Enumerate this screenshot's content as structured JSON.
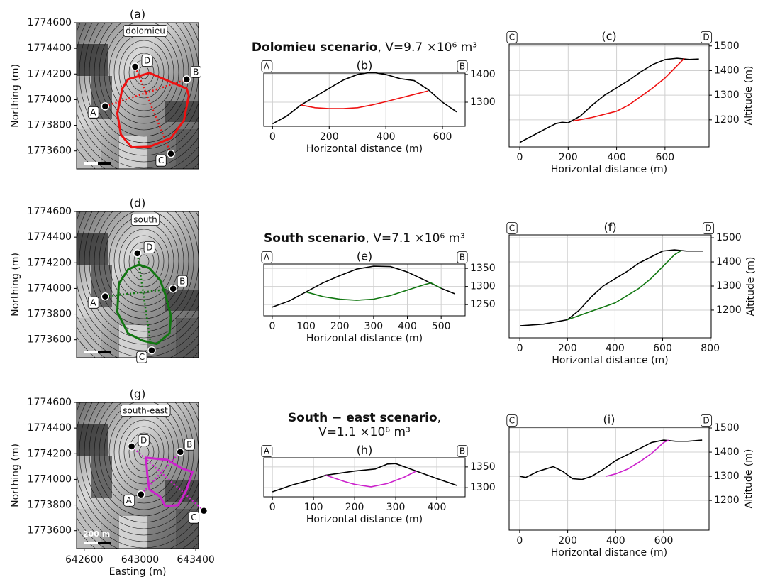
{
  "chart_data": [
    {
      "type": "map",
      "title": "(a)",
      "label": "dolomieu",
      "color": "#ee1111",
      "xlim": [
        642545,
        643420
      ],
      "ylim": [
        1773460,
        1774600
      ],
      "yticks": [
        1773600,
        1773800,
        1774000,
        1774200,
        1774400,
        1774600
      ],
      "ylabel": "Northing (m)",
      "outline": {
        "e": [
          642914,
          643068,
          643335,
          643350,
          643315,
          643222,
          643068,
          642940,
          642863,
          642837,
          642873
        ],
        "n": [
          1774158,
          1774208,
          1774086,
          1774031,
          1773838,
          1773700,
          1773633,
          1773628,
          1773727,
          1773893,
          1774086
        ]
      },
      "points": [
        {
          "label": "A",
          "e": 642750,
          "n": 1773948
        },
        {
          "label": "B",
          "e": 643335,
          "n": 1774158
        },
        {
          "label": "C",
          "e": 643222,
          "n": 1773578
        },
        {
          "label": "D",
          "e": 642965,
          "n": 1774257
        }
      ]
    },
    {
      "type": "line",
      "title": "(b)",
      "heading": {
        "name": "Dolomieu scenario",
        "detail": ", V=9.7 ×10⁶ m³"
      },
      "ends": [
        "A",
        "B"
      ],
      "xlabel": "Horizontal distance (m)",
      "xlim": [
        -31,
        680
      ],
      "ylim": [
        1213,
        1405
      ],
      "xticks": [
        0,
        200,
        400,
        600
      ],
      "yticks": [
        1300,
        1400
      ],
      "grid": true,
      "series": [
        {
          "color": "#000000",
          "x": [
            0,
            50,
            100,
            150,
            200,
            250,
            300,
            350,
            400,
            450,
            500,
            550,
            600,
            650
          ],
          "values": [
            1222,
            1250,
            1290,
            1320,
            1350,
            1380,
            1400,
            1408,
            1400,
            1385,
            1378,
            1345,
            1300,
            1265
          ]
        },
        {
          "color": "#ee1111",
          "x": [
            100,
            150,
            200,
            250,
            300,
            350,
            400,
            450,
            500,
            550
          ],
          "values": [
            1290,
            1280,
            1277,
            1277,
            1280,
            1290,
            1302,
            1315,
            1328,
            1341
          ]
        }
      ]
    },
    {
      "type": "line",
      "title": "(c)",
      "ends": [
        "C",
        "D"
      ],
      "xlabel": "Horizontal distance (m)",
      "ylabel": "Altitude (m)",
      "xlim": [
        -44,
        782
      ],
      "ylim": [
        1090,
        1508
      ],
      "xticks": [
        0,
        200,
        400,
        600
      ],
      "yticks": [
        1200,
        1300,
        1400,
        1500
      ],
      "grid": true,
      "series": [
        {
          "color": "#000000",
          "x": [
            0,
            100,
            150,
            175,
            200,
            250,
            300,
            350,
            400,
            450,
            500,
            550,
            600,
            650,
            700,
            740
          ],
          "values": [
            1108,
            1160,
            1185,
            1190,
            1188,
            1215,
            1260,
            1300,
            1330,
            1360,
            1395,
            1425,
            1445,
            1450,
            1445,
            1447
          ]
        },
        {
          "color": "#ee1111",
          "x": [
            220,
            300,
            400,
            450,
            500,
            550,
            600,
            650,
            680
          ],
          "values": [
            1195,
            1210,
            1235,
            1260,
            1295,
            1330,
            1370,
            1420,
            1450
          ]
        }
      ]
    },
    {
      "type": "map",
      "title": "(d)",
      "label": "south",
      "color": "#117711",
      "xlim": [
        642545,
        643420
      ],
      "ylim": [
        1773460,
        1774600
      ],
      "yticks": [
        1773600,
        1773800,
        1774000,
        1774200,
        1774400,
        1774600
      ],
      "ylabel": "Northing (m)",
      "outline": {
        "e": [
          642991,
          643068,
          643145,
          643181,
          643222,
          643212,
          643120,
          643017,
          642914,
          642837,
          642848,
          642914
        ],
        "n": [
          1774186,
          1774158,
          1774064,
          1773954,
          1773788,
          1773650,
          1773567,
          1773594,
          1773650,
          1773815,
          1774036,
          1774147
        ]
      },
      "points": [
        {
          "label": "A",
          "e": 642750,
          "n": 1773937
        },
        {
          "label": "B",
          "e": 643238,
          "n": 1773998
        },
        {
          "label": "C",
          "e": 643084,
          "n": 1773517
        },
        {
          "label": "D",
          "e": 642981,
          "n": 1774274
        }
      ]
    },
    {
      "type": "line",
      "title": "(e)",
      "heading": {
        "name": "South scenario",
        "detail": ", V=7.1 ×10⁶ m³"
      },
      "ends": [
        "A",
        "B"
      ],
      "xlabel": "Horizontal distance (m)",
      "xlim": [
        -25,
        571
      ],
      "ylim": [
        1219,
        1362
      ],
      "xticks": [
        0,
        100,
        200,
        300,
        400,
        500
      ],
      "yticks": [
        1250,
        1300,
        1350
      ],
      "grid": true,
      "series": [
        {
          "color": "#000000",
          "x": [
            0,
            50,
            100,
            150,
            200,
            250,
            300,
            350,
            400,
            450,
            500,
            540
          ],
          "values": [
            1243,
            1260,
            1285,
            1310,
            1330,
            1348,
            1356,
            1355,
            1340,
            1318,
            1295,
            1280
          ]
        },
        {
          "color": "#117711",
          "x": [
            100,
            150,
            200,
            250,
            300,
            350,
            400,
            450,
            470,
            500
          ],
          "values": [
            1285,
            1272,
            1265,
            1262,
            1265,
            1275,
            1290,
            1305,
            1310,
            1295
          ]
        }
      ]
    },
    {
      "type": "line",
      "title": "(f)",
      "ends": [
        "C",
        "D"
      ],
      "xlabel": "Horizontal distance (m)",
      "ylabel": "Altitude (m)",
      "xlim": [
        -45,
        804
      ],
      "ylim": [
        1085,
        1512
      ],
      "xticks": [
        0,
        200,
        400,
        600,
        800
      ],
      "yticks": [
        1200,
        1300,
        1400,
        1500
      ],
      "grid": true,
      "series": [
        {
          "color": "#000000",
          "x": [
            0,
            100,
            200,
            250,
            300,
            350,
            400,
            450,
            500,
            550,
            600,
            650,
            700,
            770
          ],
          "values": [
            1135,
            1142,
            1160,
            1200,
            1255,
            1300,
            1330,
            1360,
            1395,
            1420,
            1445,
            1450,
            1445,
            1445
          ]
        },
        {
          "color": "#117711",
          "x": [
            200,
            300,
            400,
            500,
            550,
            600,
            650,
            680
          ],
          "values": [
            1160,
            1195,
            1230,
            1290,
            1330,
            1380,
            1430,
            1448
          ]
        }
      ]
    },
    {
      "type": "map",
      "title": "(g)",
      "label": "south-east",
      "color": "#cc22cc",
      "scalebar": "200 m",
      "xlim": [
        642545,
        643420
      ],
      "ylim": [
        1773460,
        1774600
      ],
      "xticks": [
        642600,
        643000,
        643400
      ],
      "xlabel": "Easting (m)",
      "yticks": [
        1773600,
        1773800,
        1774000,
        1774200,
        1774400,
        1774600
      ],
      "ylabel": "Northing (m)",
      "outline": {
        "e": [
          643043,
          643197,
          643299,
          643376,
          643335,
          643273,
          643181,
          643145,
          643068,
          643053
        ],
        "n": [
          1774169,
          1774152,
          1774086,
          1774058,
          1773920,
          1773798,
          1773793,
          1773865,
          1773920,
          1774031
        ]
      },
      "points": [
        {
          "label": "A",
          "e": 643007,
          "n": 1773882
        },
        {
          "label": "B",
          "e": 643289,
          "n": 1774214
        },
        {
          "label": "C",
          "e": 643458,
          "n": 1773755
        },
        {
          "label": "D",
          "e": 642940,
          "n": 1774257
        }
      ]
    },
    {
      "type": "line",
      "title": "(h)",
      "heading": {
        "name": "South − east scenario",
        "detail": ",",
        "detail2": "V=1.1 ×10⁶ m³"
      },
      "ends": [
        "A",
        "B"
      ],
      "xlabel": "Horizontal distance (m)",
      "xlim": [
        -21,
        469
      ],
      "ylim": [
        1278,
        1372
      ],
      "xticks": [
        0,
        100,
        200,
        300,
        400
      ],
      "yticks": [
        1300,
        1350
      ],
      "grid": true,
      "series": [
        {
          "color": "#000000",
          "x": [
            0,
            50,
            100,
            130,
            200,
            250,
            280,
            300,
            350,
            400,
            450
          ],
          "values": [
            1290,
            1307,
            1320,
            1330,
            1340,
            1345,
            1357,
            1358,
            1340,
            1322,
            1305
          ]
        },
        {
          "color": "#cc22cc",
          "x": [
            130,
            175,
            200,
            240,
            280,
            320,
            350
          ],
          "values": [
            1330,
            1315,
            1308,
            1302,
            1310,
            1325,
            1340
          ]
        }
      ]
    },
    {
      "type": "line",
      "title": "(i)",
      "ends": [
        "C",
        "D"
      ],
      "xlabel": "Horizontal distance (m)",
      "ylabel": "Altitude (m)",
      "xlim": [
        -44,
        789
      ],
      "ylim": [
        1077,
        1503
      ],
      "xticks": [
        0,
        200,
        400,
        600
      ],
      "yticks": [
        1200,
        1300,
        1400,
        1500
      ],
      "grid": true,
      "series": [
        {
          "color": "#000000",
          "x": [
            0,
            25,
            75,
            140,
            180,
            220,
            260,
            300,
            350,
            400,
            450,
            500,
            550,
            600,
            650,
            700,
            760
          ],
          "values": [
            1300,
            1295,
            1320,
            1340,
            1320,
            1290,
            1287,
            1300,
            1330,
            1365,
            1390,
            1415,
            1440,
            1450,
            1445,
            1445,
            1450
          ]
        },
        {
          "color": "#cc22cc",
          "x": [
            360,
            400,
            450,
            500,
            550,
            600,
            620
          ],
          "values": [
            1300,
            1310,
            1330,
            1360,
            1395,
            1440,
            1450
          ]
        }
      ]
    }
  ]
}
